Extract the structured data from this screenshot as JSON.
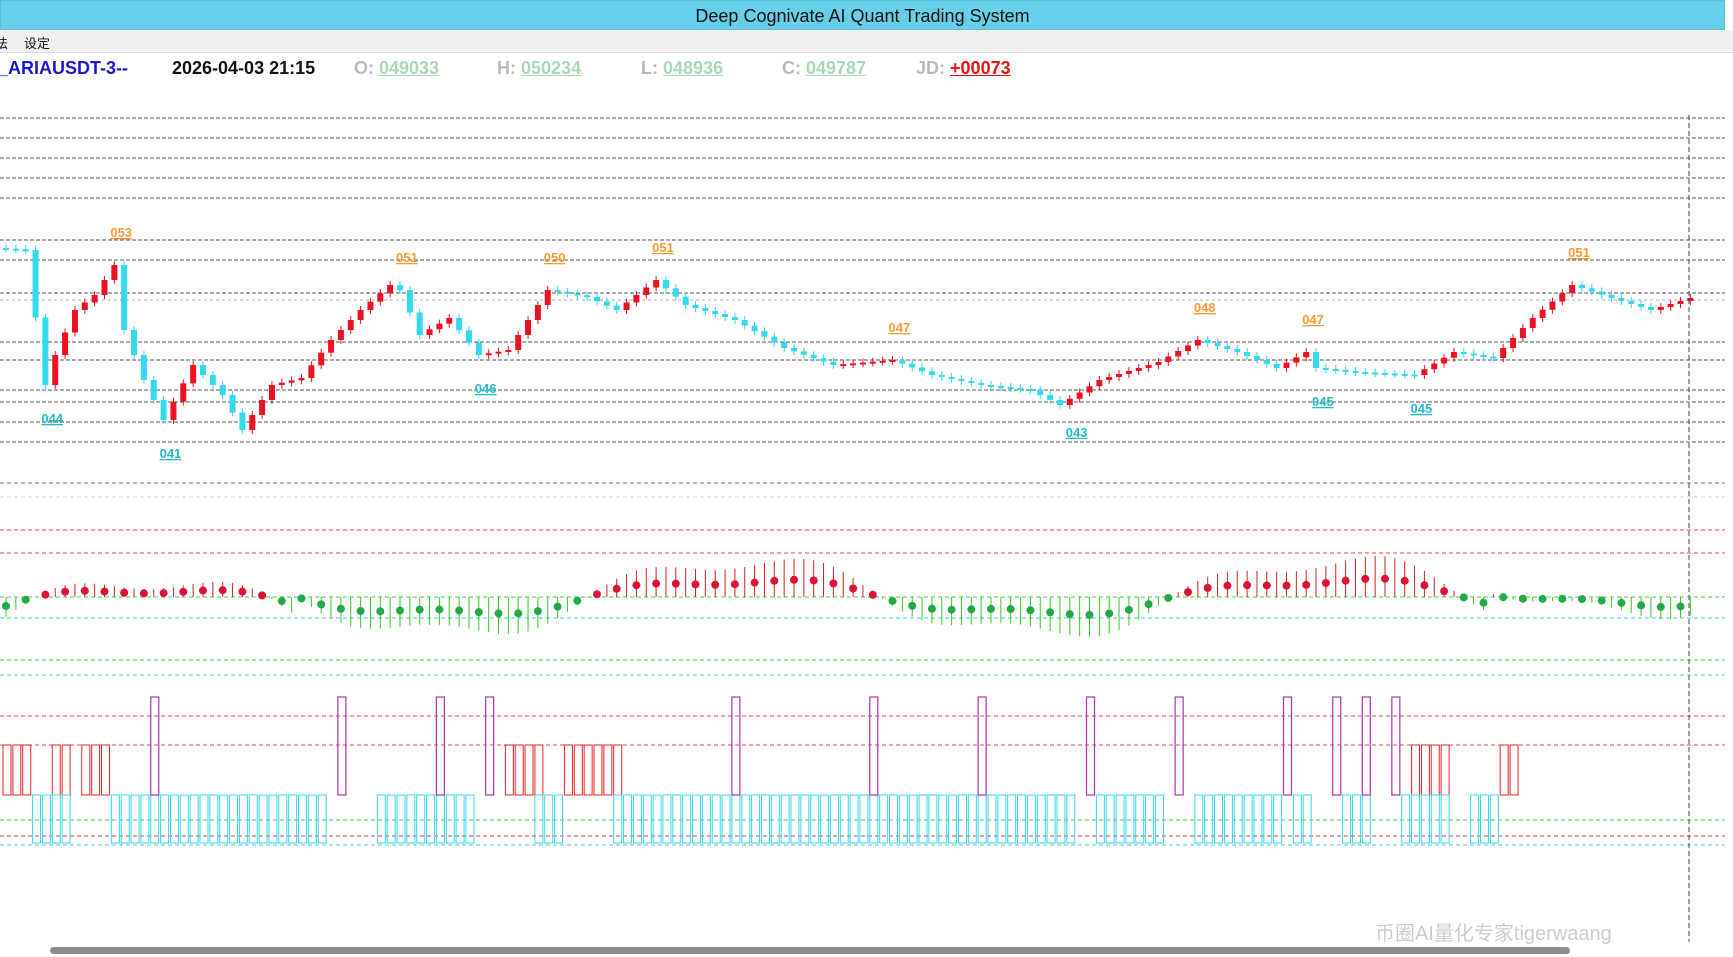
{
  "window": {
    "title": "Deep Cognivate AI Quant Trading System"
  },
  "menu": {
    "items": [
      "法",
      "设定"
    ]
  },
  "quote": {
    "symbol": "_ARIAUSDT-3--",
    "datetime": "2026-04-03 21:15",
    "open_label": "O:",
    "open": "049033",
    "high_label": "H:",
    "high": "050234",
    "low_label": "L:",
    "low": "048936",
    "close_label": "C:",
    "close": "049787",
    "jd_label": "JD:",
    "jd": "+00073"
  },
  "price_labels": [
    {
      "text": "053",
      "kind": "high",
      "bar": 12
    },
    {
      "text": "044",
      "kind": "low",
      "bar": 5
    },
    {
      "text": "041",
      "kind": "low",
      "bar": 17
    },
    {
      "text": "051",
      "kind": "high",
      "bar": 41
    },
    {
      "text": "046",
      "kind": "low",
      "bar": 49
    },
    {
      "text": "050",
      "kind": "high",
      "bar": 56
    },
    {
      "text": "051",
      "kind": "high",
      "bar": 67
    },
    {
      "text": "047",
      "kind": "high",
      "bar": 91
    },
    {
      "text": "043",
      "kind": "low",
      "bar": 109
    },
    {
      "text": "048",
      "kind": "high",
      "bar": 122
    },
    {
      "text": "047",
      "kind": "high",
      "bar": 133
    },
    {
      "text": "045",
      "kind": "low",
      "bar": 134
    },
    {
      "text": "045",
      "kind": "low",
      "bar": 144
    },
    {
      "text": "051",
      "kind": "high",
      "bar": 160
    }
  ],
  "colors": {
    "up": "#ee1122",
    "down": "#33d9ee",
    "label_high": "#ff9933",
    "label_low": "#22bbcc",
    "hist_up": "#cc2222",
    "hist_down": "#33cc22",
    "lbl_gray": "#b9b9b9",
    "val_green": "#a8d8b5",
    "jd_red": "#ee1111",
    "symbol_blue": "#1a1acc"
  },
  "watermark": "币圈AI量化专家tigerwaang"
}
